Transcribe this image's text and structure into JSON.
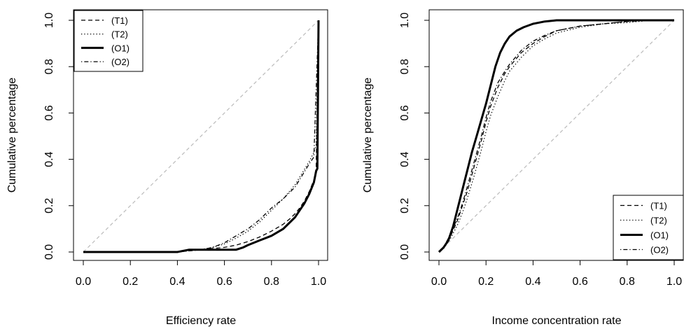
{
  "chart_data": [
    {
      "type": "line",
      "xlabel": "Efficiency rate",
      "ylabel": "Cumulative percentage",
      "xlim": [
        0,
        1
      ],
      "ylim": [
        0,
        1
      ],
      "xticks": [
        "0.0",
        "0.2",
        "0.4",
        "0.6",
        "0.8",
        "1.0"
      ],
      "yticks": [
        "0.0",
        "0.2",
        "0.4",
        "0.6",
        "0.8",
        "1.0"
      ],
      "grid": false,
      "legend_position": "top-left",
      "reference_line": {
        "style": "dashed",
        "color": "#bbbbbb",
        "x": [
          0,
          1
        ],
        "y": [
          0,
          1
        ]
      },
      "series": [
        {
          "name": "(T1)",
          "style": "dashed",
          "x": [
            0,
            0.4,
            0.45,
            0.5,
            0.55,
            0.6,
            0.65,
            0.7,
            0.75,
            0.8,
            0.85,
            0.88,
            0.9,
            0.92,
            0.94,
            0.96,
            0.98,
            0.99,
            1.0
          ],
          "y": [
            0,
            0,
            0.005,
            0.01,
            0.015,
            0.02,
            0.03,
            0.045,
            0.065,
            0.09,
            0.12,
            0.145,
            0.165,
            0.19,
            0.22,
            0.26,
            0.31,
            0.36,
            1.0
          ]
        },
        {
          "name": "(T2)",
          "style": "dotted",
          "x": [
            0,
            0.4,
            0.45,
            0.5,
            0.55,
            0.6,
            0.65,
            0.7,
            0.75,
            0.8,
            0.85,
            0.9,
            0.93,
            0.96,
            0.98,
            0.99,
            1.0
          ],
          "y": [
            0,
            0,
            0.005,
            0.01,
            0.02,
            0.035,
            0.06,
            0.09,
            0.13,
            0.18,
            0.23,
            0.29,
            0.34,
            0.39,
            0.43,
            0.46,
            1.0
          ]
        },
        {
          "name": "(O1)",
          "style": "solid-thick",
          "x": [
            0,
            0.4,
            0.45,
            0.5,
            0.55,
            0.6,
            0.65,
            0.68,
            0.7,
            0.75,
            0.8,
            0.85,
            0.88,
            0.9,
            0.92,
            0.94,
            0.96,
            0.98,
            0.99,
            0.995,
            1.0
          ],
          "y": [
            0,
            0,
            0.01,
            0.01,
            0.01,
            0.01,
            0.01,
            0.02,
            0.03,
            0.05,
            0.07,
            0.1,
            0.13,
            0.15,
            0.18,
            0.21,
            0.25,
            0.3,
            0.35,
            0.36,
            1.0
          ]
        },
        {
          "name": "(O2)",
          "style": "dotdash",
          "x": [
            0,
            0.4,
            0.45,
            0.5,
            0.55,
            0.6,
            0.65,
            0.7,
            0.75,
            0.8,
            0.85,
            0.9,
            0.93,
            0.96,
            0.98,
            1.0
          ],
          "y": [
            0,
            0,
            0.005,
            0.01,
            0.02,
            0.04,
            0.07,
            0.1,
            0.14,
            0.19,
            0.23,
            0.28,
            0.33,
            0.38,
            0.41,
            1.0
          ]
        }
      ]
    },
    {
      "type": "line",
      "xlabel": "Income concentration rate",
      "ylabel": "Cumulative percentage",
      "xlim": [
        0,
        1
      ],
      "ylim": [
        0,
        1
      ],
      "xticks": [
        "0.0",
        "0.2",
        "0.4",
        "0.6",
        "0.8",
        "1.0"
      ],
      "yticks": [
        "0.0",
        "0.2",
        "0.4",
        "0.6",
        "0.8",
        "1.0"
      ],
      "grid": false,
      "legend_position": "bottom-right",
      "reference_line": {
        "style": "dashed",
        "color": "#bbbbbb",
        "x": [
          0,
          1
        ],
        "y": [
          0,
          1
        ]
      },
      "series": [
        {
          "name": "(T1)",
          "style": "dashed",
          "x": [
            0,
            0.02,
            0.05,
            0.08,
            0.1,
            0.12,
            0.15,
            0.18,
            0.2,
            0.22,
            0.25,
            0.28,
            0.3,
            0.35,
            0.4,
            0.45,
            0.5,
            0.6,
            0.7,
            0.8,
            0.9,
            1.0
          ],
          "y": [
            0,
            0.02,
            0.07,
            0.14,
            0.2,
            0.26,
            0.37,
            0.48,
            0.56,
            0.63,
            0.71,
            0.77,
            0.8,
            0.86,
            0.9,
            0.93,
            0.955,
            0.975,
            0.985,
            0.995,
            1.0,
            1.0
          ]
        },
        {
          "name": "(T2)",
          "style": "dotted",
          "x": [
            0,
            0.02,
            0.05,
            0.08,
            0.1,
            0.12,
            0.15,
            0.18,
            0.2,
            0.22,
            0.25,
            0.28,
            0.3,
            0.35,
            0.4,
            0.45,
            0.5,
            0.6,
            0.7,
            0.8,
            0.9,
            1.0
          ],
          "y": [
            0,
            0.015,
            0.06,
            0.12,
            0.17,
            0.23,
            0.33,
            0.44,
            0.52,
            0.59,
            0.67,
            0.74,
            0.78,
            0.84,
            0.89,
            0.92,
            0.945,
            0.97,
            0.985,
            0.99,
            1.0,
            1.0
          ]
        },
        {
          "name": "(O1)",
          "style": "solid-thick",
          "x": [
            0,
            0.02,
            0.04,
            0.06,
            0.08,
            0.1,
            0.12,
            0.14,
            0.16,
            0.18,
            0.2,
            0.22,
            0.24,
            0.26,
            0.28,
            0.3,
            0.33,
            0.36,
            0.4,
            0.45,
            0.5,
            0.6,
            0.8,
            1.0
          ],
          "y": [
            0,
            0.02,
            0.05,
            0.11,
            0.19,
            0.27,
            0.35,
            0.43,
            0.5,
            0.57,
            0.64,
            0.72,
            0.8,
            0.86,
            0.9,
            0.93,
            0.955,
            0.97,
            0.985,
            0.995,
            1.0,
            1.0,
            1.0,
            1.0
          ]
        },
        {
          "name": "(O2)",
          "style": "dotdash",
          "x": [
            0,
            0.02,
            0.05,
            0.08,
            0.1,
            0.12,
            0.15,
            0.18,
            0.2,
            0.22,
            0.25,
            0.28,
            0.3,
            0.35,
            0.4,
            0.45,
            0.5,
            0.6,
            0.7,
            0.8,
            0.9,
            1.0
          ],
          "y": [
            0,
            0.02,
            0.08,
            0.15,
            0.21,
            0.28,
            0.39,
            0.5,
            0.58,
            0.65,
            0.73,
            0.78,
            0.81,
            0.87,
            0.91,
            0.935,
            0.955,
            0.975,
            0.985,
            0.995,
            1.0,
            1.0
          ]
        }
      ]
    }
  ]
}
